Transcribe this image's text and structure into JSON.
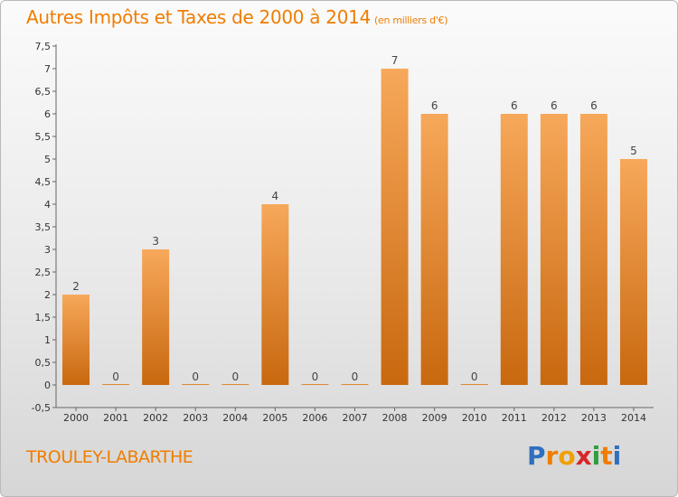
{
  "header": {
    "title": "Autres Impôts et Taxes de 2000 à 2014",
    "subtitle": "(en milliers d'€)"
  },
  "footer": {
    "commune": "TROULEY-LABARTHE",
    "logo": "Proxiti"
  },
  "colors": {
    "accent": "#f07d00",
    "bar_top": "#f7a85a",
    "bar_bottom": "#c8680f",
    "axis": "#444444"
  },
  "chart_data": {
    "type": "bar",
    "title": "Autres Impôts et Taxes de 2000 à 2014",
    "subtitle": "(en milliers d'€)",
    "categories": [
      "2000",
      "2001",
      "2002",
      "2003",
      "2004",
      "2005",
      "2006",
      "2007",
      "2008",
      "2009",
      "2010",
      "2011",
      "2012",
      "2013",
      "2014"
    ],
    "values": [
      2,
      0,
      3,
      0,
      0,
      4,
      0,
      0,
      7,
      6,
      0,
      6,
      6,
      6,
      5
    ],
    "data_labels": [
      "2",
      "0",
      "3",
      "0",
      "0",
      "4",
      "0",
      "0",
      "7",
      "6",
      "0",
      "6",
      "6",
      "6",
      "5"
    ],
    "yticks": [
      "-0,5",
      "0",
      "0,5",
      "1",
      "1,5",
      "2",
      "2,5",
      "3",
      "3,5",
      "4",
      "4,5",
      "5",
      "5,5",
      "6",
      "6,5",
      "7",
      "7,5"
    ],
    "ylim": [
      -0.5,
      7.5
    ],
    "xlabel": "",
    "ylabel": "",
    "grid": false,
    "legend": "none"
  }
}
